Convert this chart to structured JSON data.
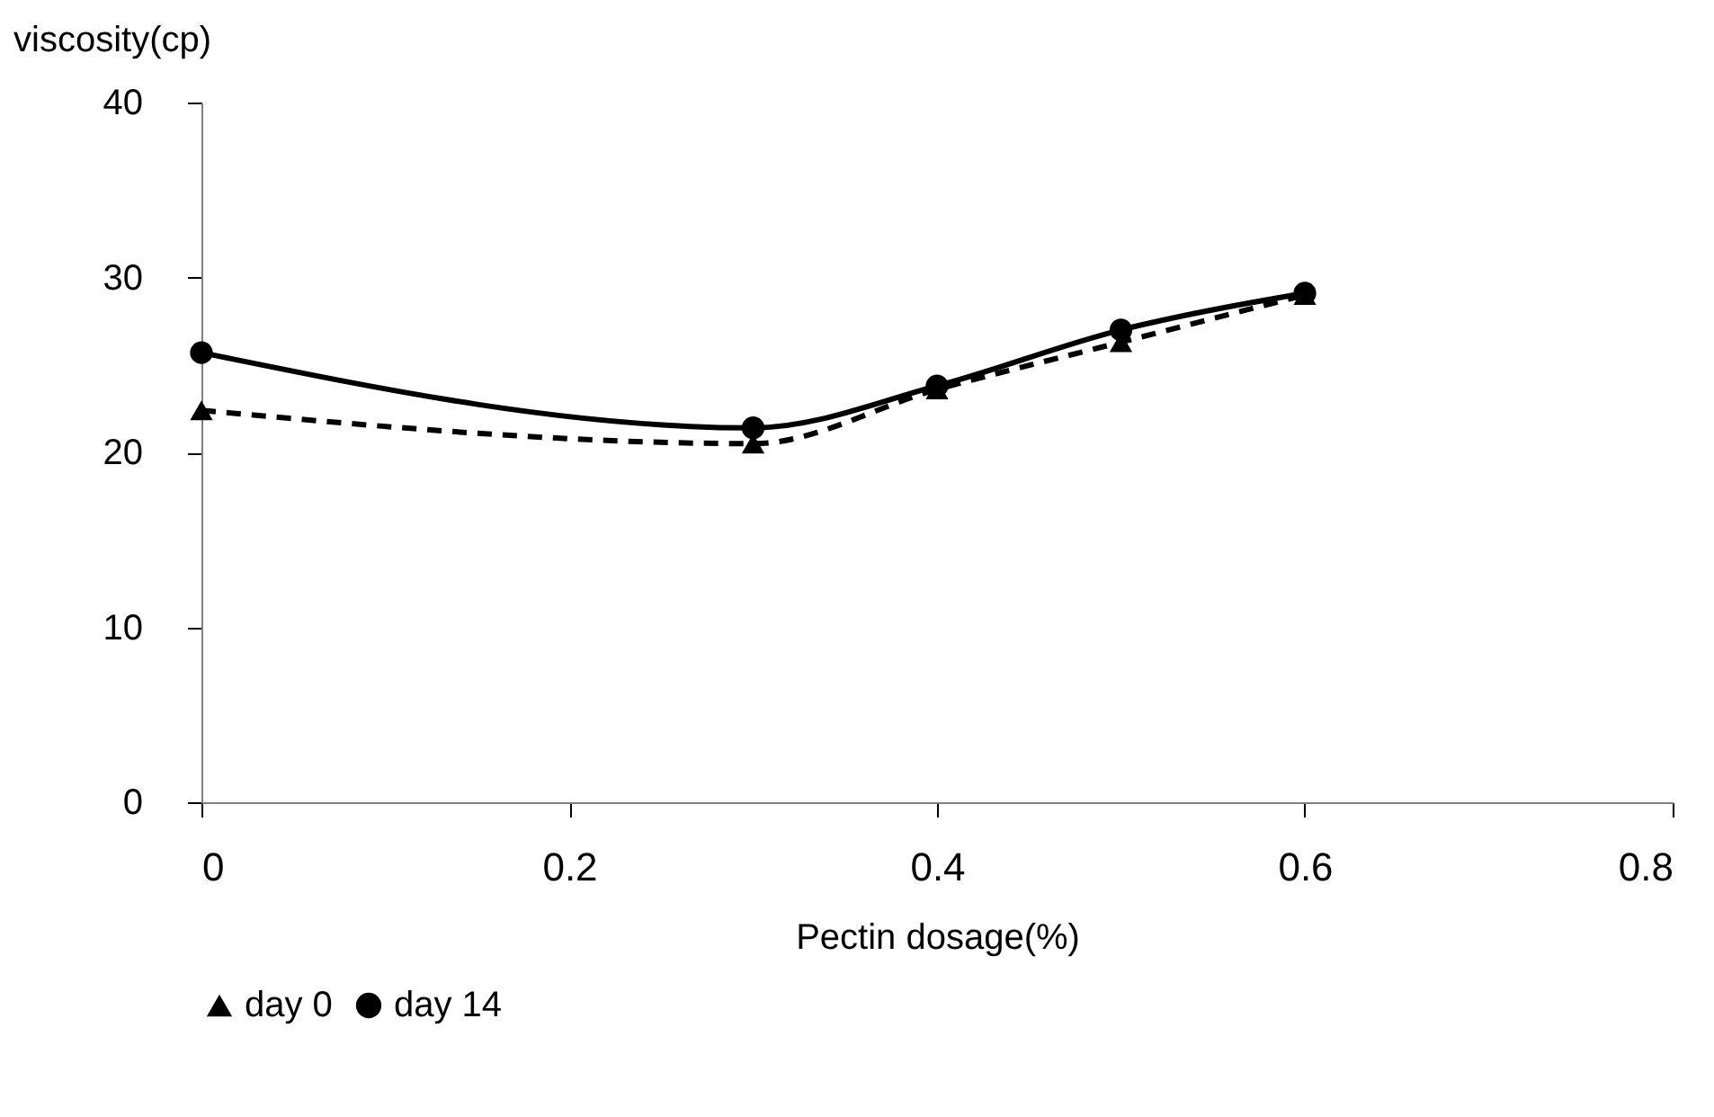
{
  "chart_data": {
    "type": "line",
    "xlabel": "Pectin dosage(%)",
    "ylabel": "viscosity(cp)",
    "x": [
      0,
      0.3,
      0.4,
      0.5,
      0.6
    ],
    "series": [
      {
        "name": "day 0",
        "color": "#000000",
        "marker": "triangle",
        "line_style": "dashed",
        "values": [
          22.4,
          20.5,
          23.6,
          26.3,
          29.0
        ]
      },
      {
        "name": "day 14",
        "color": "#000000",
        "marker": "circle",
        "line_style": "solid",
        "values": [
          25.7,
          21.4,
          23.8,
          27.0,
          29.1
        ]
      }
    ],
    "xlim": [
      0,
      0.8
    ],
    "xticks": [
      0,
      0.2,
      0.4,
      0.6,
      0.8
    ],
    "ylim": [
      0,
      40
    ],
    "yticks": [
      0,
      10,
      20,
      30,
      40
    ],
    "grid": false,
    "legend": "bottom"
  }
}
